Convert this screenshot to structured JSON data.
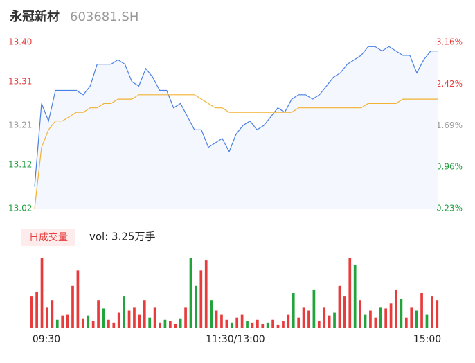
{
  "chart_data": [
    {
      "type": "line",
      "title": "永冠新材",
      "subtitle": "603681.SH",
      "ylim": [
        13.02,
        13.4
      ],
      "yticks": [
        {
          "value": 13.4,
          "label": "13.40"
        },
        13.31,
        13.21,
        13.12,
        13.02
      ],
      "y2lim": [
        0.23,
        3.16
      ],
      "y2ticks": [
        {
          "value": 3.16,
          "label": "3.16%"
        },
        {
          "value": 2.42,
          "label": "2.42%"
        },
        {
          "value": 1.69,
          "label": "1.69%"
        },
        {
          "value": 0.96,
          "label": "0.96%"
        },
        {
          "value": 0.23,
          "label": "0.23%"
        }
      ],
      "tick_colors": [
        "#e83b3b",
        "#e83b3b",
        "#999999",
        "#1e9e3c",
        "#1e9e3c"
      ],
      "series": [
        {
          "color": "#4a80e2",
          "values": [
            13.07,
            13.26,
            13.22,
            13.29,
            13.29,
            13.29,
            13.29,
            13.28,
            13.3,
            13.35,
            13.35,
            13.35,
            13.36,
            13.35,
            13.31,
            13.3,
            13.34,
            13.32,
            13.29,
            13.29,
            13.25,
            13.26,
            13.23,
            13.2,
            13.2,
            13.16,
            13.17,
            13.18,
            13.15,
            13.19,
            13.21,
            13.22,
            13.2,
            13.21,
            13.23,
            13.25,
            13.24,
            13.27,
            13.28,
            13.28,
            13.27,
            13.28,
            13.3,
            13.32,
            13.33,
            13.35,
            13.36,
            13.37,
            13.39,
            13.39,
            13.38,
            13.39,
            13.38,
            13.37,
            13.37,
            13.33,
            13.36,
            13.38,
            13.38
          ]
        },
        {
          "color": "#f2b233",
          "values": [
            13.02,
            13.16,
            13.2,
            13.22,
            13.22,
            13.23,
            13.24,
            13.24,
            13.25,
            13.25,
            13.26,
            13.26,
            13.27,
            13.27,
            13.27,
            13.28,
            13.28,
            13.28,
            13.28,
            13.28,
            13.28,
            13.28,
            13.28,
            13.28,
            13.27,
            13.26,
            13.25,
            13.25,
            13.24,
            13.24,
            13.24,
            13.24,
            13.24,
            13.24,
            13.24,
            13.24,
            13.24,
            13.24,
            13.25,
            13.25,
            13.25,
            13.25,
            13.25,
            13.25,
            13.25,
            13.25,
            13.25,
            13.25,
            13.26,
            13.26,
            13.26,
            13.26,
            13.26,
            13.27,
            13.27,
            13.27,
            13.27,
            13.27,
            13.27
          ]
        }
      ]
    },
    {
      "type": "bar",
      "title": "日成交量",
      "subtitle": "vol: 3.25万手",
      "x_labels": [
        "09:30",
        "11:30/13:00",
        "15:00"
      ],
      "values": [
        45,
        52,
        100,
        30,
        40,
        12,
        18,
        20,
        60,
        82,
        14,
        18,
        10,
        40,
        28,
        12,
        8,
        22,
        45,
        25,
        30,
        20,
        40,
        15,
        30,
        8,
        12,
        10,
        6,
        14,
        30,
        100,
        60,
        82,
        96,
        40,
        25,
        20,
        12,
        8,
        15,
        20,
        10,
        8,
        12,
        6,
        8,
        12,
        5,
        10,
        20,
        50,
        15,
        30,
        25,
        55,
        10,
        30,
        18,
        22,
        60,
        45,
        100,
        90,
        40,
        20,
        25,
        15,
        30,
        28,
        35,
        55,
        42,
        15,
        30,
        25,
        50,
        20,
        45,
        40
      ],
      "colors": [
        "#e83b3b",
        "#e83b3b",
        "#e83b3b",
        "#e83b3b",
        "#e83b3b",
        "#22a33b",
        "#e83b3b",
        "#e83b3b",
        "#e83b3b",
        "#e83b3b",
        "#e83b3b",
        "#22a33b",
        "#e83b3b",
        "#e83b3b",
        "#22a33b",
        "#e83b3b",
        "#e83b3b",
        "#e83b3b",
        "#22a33b",
        "#e83b3b",
        "#e83b3b",
        "#e83b3b",
        "#e83b3b",
        "#22a33b",
        "#e83b3b",
        "#e83b3b",
        "#22a33b",
        "#e83b3b",
        "#e83b3b",
        "#22a33b",
        "#e83b3b",
        "#22a33b",
        "#22a33b",
        "#e83b3b",
        "#e83b3b",
        "#22a33b",
        "#e83b3b",
        "#e83b3b",
        "#e83b3b",
        "#22a33b",
        "#e83b3b",
        "#e83b3b",
        "#22a33b",
        "#e83b3b",
        "#e83b3b",
        "#e83b3b",
        "#22a33b",
        "#e83b3b",
        "#e83b3b",
        "#e83b3b",
        "#e83b3b",
        "#22a33b",
        "#e83b3b",
        "#e83b3b",
        "#e83b3b",
        "#22a33b",
        "#e83b3b",
        "#e83b3b",
        "#e83b3b",
        "#22a33b",
        "#e83b3b",
        "#e83b3b",
        "#e83b3b",
        "#22a33b",
        "#e83b3b",
        "#22a33b",
        "#e83b3b",
        "#e83b3b",
        "#22a33b",
        "#e83b3b",
        "#e83b3b",
        "#e83b3b",
        "#22a33b",
        "#e83b3b",
        "#e83b3b",
        "#22a33b",
        "#e83b3b",
        "#22a33b",
        "#e83b3b",
        "#e83b3b"
      ]
    }
  ]
}
